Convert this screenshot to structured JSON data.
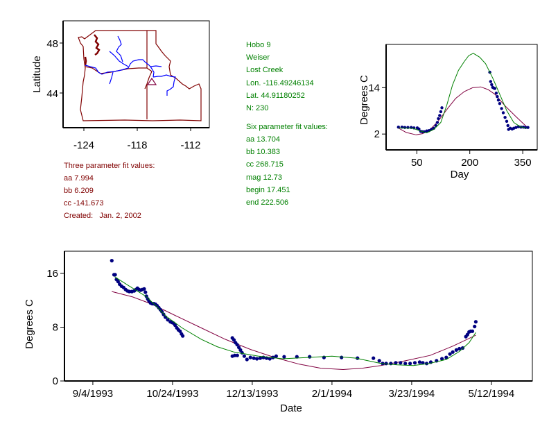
{
  "map": {
    "ylabel": "Latitude",
    "xticks": [
      "-124",
      "-118",
      "-112"
    ],
    "yticks": [
      "48",
      "44"
    ],
    "colors": {
      "border": "#800000",
      "river": "#0000ff",
      "site": "#800040"
    }
  },
  "three_param": {
    "title": "Three parameter fit values:",
    "lines": [
      "aa 7.994",
      "bb 6.209",
      "cc -141.673",
      "Created:   Jan. 2, 2002"
    ]
  },
  "site_info": {
    "lines": [
      "Hobo 9",
      "Weiser",
      "Lost Creek",
      "Lon. -116.49246134",
      "Lat. 44.91180252",
      "N: 230"
    ]
  },
  "six_param": {
    "title": "Six parameter fit values:",
    "lines": [
      "aa 13.704",
      "bb 10.383",
      "cc 268.715",
      "mag 12.73",
      "begin 17.451",
      "end 222.506"
    ]
  },
  "chart_data": [
    {
      "type": "scatter",
      "title": "",
      "xlabel": "Day",
      "ylabel": "Degrees C",
      "xlim": [
        -37,
        391
      ],
      "ylim": [
        -2.1,
        25.2
      ],
      "xticks": [
        50,
        200,
        350
      ],
      "yticks": [
        2,
        14
      ],
      "colors": {
        "points": "#000080",
        "six_param_fit": "#008000",
        "three_param_fit": "#800040"
      },
      "points": [
        [
          -2,
          3.8
        ],
        [
          8,
          3.8
        ],
        [
          16,
          3.7
        ],
        [
          24.7,
          3.7
        ],
        [
          34,
          3.7
        ],
        [
          42,
          3.6
        ],
        [
          51.3,
          3.6
        ],
        [
          56,
          3.3
        ],
        [
          61,
          2.7
        ],
        [
          66,
          2.6
        ],
        [
          71,
          2.6
        ],
        [
          78,
          2.8
        ],
        [
          84.7,
          2.9
        ],
        [
          91,
          3.2
        ],
        [
          98,
          3.5
        ],
        [
          104,
          4.2
        ],
        [
          108,
          5.0
        ],
        [
          111,
          6.0
        ],
        [
          114.7,
          6.8
        ],
        [
          118,
          7.8
        ],
        [
          121,
          8.8
        ],
        [
          256.7,
          18
        ],
        [
          259,
          15.6
        ],
        [
          262,
          14.8
        ],
        [
          264.7,
          14.1
        ],
        [
          268,
          13.9
        ],
        [
          271,
          13.8
        ],
        [
          275,
          12.6
        ],
        [
          278,
          11.7
        ],
        [
          281,
          10.8
        ],
        [
          284.7,
          9.9
        ],
        [
          290,
          8.6
        ],
        [
          294.7,
          7.5
        ],
        [
          300,
          6.3
        ],
        [
          304.7,
          5.3
        ],
        [
          308,
          4.2
        ],
        [
          310,
          3.2
        ],
        [
          314.7,
          3.5
        ],
        [
          320,
          3.3
        ],
        [
          324.7,
          3.5
        ],
        [
          331,
          3.7
        ],
        [
          338,
          3.9
        ],
        [
          345,
          3.8
        ],
        [
          352,
          3.8
        ],
        [
          358,
          3.7
        ],
        [
          364.7,
          3.7
        ]
      ],
      "six_param_fit": [
        [
          -1,
          3.6
        ],
        [
          38,
          3.5
        ],
        [
          60,
          2.8
        ],
        [
          78,
          2.3
        ],
        [
          98,
          3.2
        ],
        [
          118,
          5
        ],
        [
          135,
          9.5
        ],
        [
          151,
          14.7
        ],
        [
          168,
          18.5
        ],
        [
          184.7,
          20.8
        ],
        [
          197,
          22.3
        ],
        [
          210,
          22.9
        ],
        [
          228,
          21.9
        ],
        [
          244.7,
          20.2
        ],
        [
          265,
          16.5
        ],
        [
          284.7,
          12.3
        ],
        [
          305,
          8
        ],
        [
          324.7,
          5
        ],
        [
          343,
          3.9
        ],
        [
          361,
          3.5
        ]
      ],
      "three_param_fit": [
        [
          -1,
          3.5
        ],
        [
          20,
          2.4
        ],
        [
          48,
          1.8
        ],
        [
          66,
          2.1
        ],
        [
          84.7,
          2.9
        ],
        [
          110,
          5.3
        ],
        [
          138,
          8.7
        ],
        [
          160,
          11.2
        ],
        [
          184.7,
          13
        ],
        [
          208,
          14
        ],
        [
          231,
          14.2
        ],
        [
          252,
          13.5
        ],
        [
          271,
          12.3
        ],
        [
          300,
          9.3
        ],
        [
          330,
          6.6
        ],
        [
          361,
          3.9
        ]
      ]
    },
    {
      "type": "scatter",
      "title": "",
      "xlabel": "Date",
      "ylabel": "Degrees C",
      "x_unit": "days since 9/4/1993",
      "xlim": [
        -17.8,
        275.7
      ],
      "ylim": [
        0,
        19.3
      ],
      "xticks": [
        0,
        50,
        100,
        150,
        200,
        250
      ],
      "xtick_labels": [
        "9/4/1993",
        "10/24/1993",
        "12/13/1993",
        "2/1/1994",
        "3/23/1994",
        "5/12/1994"
      ],
      "yticks": [
        0,
        8,
        16
      ],
      "colors": {
        "points": "#000080",
        "six_param_fit": "#008000",
        "three_param_fit": "#800040"
      },
      "points": [
        [
          11.9,
          17.9
        ],
        [
          13.3,
          15.8
        ],
        [
          14,
          15.8
        ],
        [
          14.8,
          15.1
        ],
        [
          15.8,
          14.8
        ],
        [
          16.8,
          14.4
        ],
        [
          18,
          14.1
        ],
        [
          19.3,
          13.9
        ],
        [
          20.5,
          13.6
        ],
        [
          21.7,
          13.4
        ],
        [
          22.9,
          13.3
        ],
        [
          24.5,
          13.3
        ],
        [
          26,
          13.4
        ],
        [
          27,
          13.6
        ],
        [
          28,
          13.8
        ],
        [
          29,
          13.6
        ],
        [
          30,
          13.5
        ],
        [
          31,
          13.6
        ],
        [
          32.2,
          13.7
        ],
        [
          33,
          13.2
        ],
        [
          33.6,
          12.6
        ],
        [
          34.4,
          12.2
        ],
        [
          35.2,
          11.9
        ],
        [
          36.2,
          11.6
        ],
        [
          37.3,
          11.5
        ],
        [
          38.3,
          11.5
        ],
        [
          39.3,
          11.4
        ],
        [
          40.3,
          11.2
        ],
        [
          41.4,
          10.9
        ],
        [
          42.4,
          10.6
        ],
        [
          43.4,
          10.3
        ],
        [
          44.4,
          9.9
        ],
        [
          45.5,
          9.5
        ],
        [
          47,
          9.1
        ],
        [
          48.6,
          8.8
        ],
        [
          49.6,
          8.7
        ],
        [
          50.6,
          8.6
        ],
        [
          51.6,
          8.3
        ],
        [
          52.7,
          7.9
        ],
        [
          53.7,
          7.6
        ],
        [
          54.7,
          7.4
        ],
        [
          55.6,
          7.0
        ],
        [
          56.4,
          6.7
        ],
        [
          87.5,
          6.4
        ],
        [
          88.5,
          6.1
        ],
        [
          89.5,
          5.7
        ],
        [
          90.5,
          5.4
        ],
        [
          91.6,
          5.0
        ],
        [
          92.6,
          4.6
        ],
        [
          93.6,
          4.2
        ],
        [
          95,
          3.7
        ],
        [
          96.7,
          3.2
        ],
        [
          87.5,
          3.7
        ],
        [
          89,
          3.8
        ],
        [
          90.6,
          3.8
        ],
        [
          98.8,
          3.5
        ],
        [
          101,
          3.4
        ],
        [
          102.9,
          3.3
        ],
        [
          105,
          3.4
        ],
        [
          107,
          3.5
        ],
        [
          109,
          3.4
        ],
        [
          111,
          3.3
        ],
        [
          113,
          3.5
        ],
        [
          115,
          3.7
        ],
        [
          120,
          3.6
        ],
        [
          128,
          3.6
        ],
        [
          136,
          3.6
        ],
        [
          145,
          3.5
        ],
        [
          156,
          3.5
        ],
        [
          166,
          3.4
        ],
        [
          176,
          3.4
        ],
        [
          179.7,
          3.0
        ],
        [
          181.8,
          2.6
        ],
        [
          184,
          2.6
        ],
        [
          186.9,
          2.6
        ],
        [
          190,
          2.7
        ],
        [
          193,
          2.7
        ],
        [
          196,
          2.6
        ],
        [
          199,
          2.6
        ],
        [
          202,
          2.7
        ],
        [
          205,
          2.8
        ],
        [
          207,
          2.7
        ],
        [
          209.4,
          2.6
        ],
        [
          212,
          2.8
        ],
        [
          215.6,
          3.0
        ],
        [
          219,
          3.3
        ],
        [
          221.7,
          3.5
        ],
        [
          224,
          4.0
        ],
        [
          225.8,
          4.3
        ],
        [
          228,
          4.6
        ],
        [
          229.9,
          4.8
        ],
        [
          232,
          4.9
        ],
        [
          234,
          6.6
        ],
        [
          235,
          6.9
        ],
        [
          236,
          7.3
        ],
        [
          237,
          7.4
        ],
        [
          238.1,
          7.4
        ],
        [
          239.5,
          8.1
        ],
        [
          240.2,
          8.8
        ]
      ],
      "six_param_fit": [
        [
          13.7,
          15.5
        ],
        [
          23,
          14.1
        ],
        [
          33.2,
          12.6
        ],
        [
          40,
          11.1
        ],
        [
          45.5,
          9.7
        ],
        [
          56,
          7.9
        ],
        [
          68,
          6.2
        ],
        [
          78,
          5.1
        ],
        [
          88.5,
          4.3
        ],
        [
          104,
          3.7
        ],
        [
          119,
          3.3
        ],
        [
          135,
          3.5
        ],
        [
          150,
          3.7
        ],
        [
          165,
          3.4
        ],
        [
          180.7,
          2.6
        ],
        [
          191,
          2.4
        ],
        [
          201,
          2.3
        ],
        [
          211,
          2.6
        ],
        [
          221.7,
          3.2
        ],
        [
          230,
          4.4
        ],
        [
          236,
          5.7
        ],
        [
          240.2,
          7.2
        ]
      ],
      "three_param_fit": [
        [
          11.9,
          13.3
        ],
        [
          25,
          12.5
        ],
        [
          37.3,
          11.4
        ],
        [
          52,
          9.7
        ],
        [
          68,
          7.9
        ],
        [
          83,
          6.2
        ],
        [
          98.8,
          4.7
        ],
        [
          114,
          3.5
        ],
        [
          129.5,
          2.5
        ],
        [
          143,
          1.9
        ],
        [
          157,
          1.7
        ],
        [
          169,
          1.9
        ],
        [
          180.7,
          2.3
        ],
        [
          196,
          3.0
        ],
        [
          211.5,
          3.8
        ],
        [
          226,
          5.2
        ],
        [
          240.2,
          6.8
        ]
      ]
    }
  ]
}
